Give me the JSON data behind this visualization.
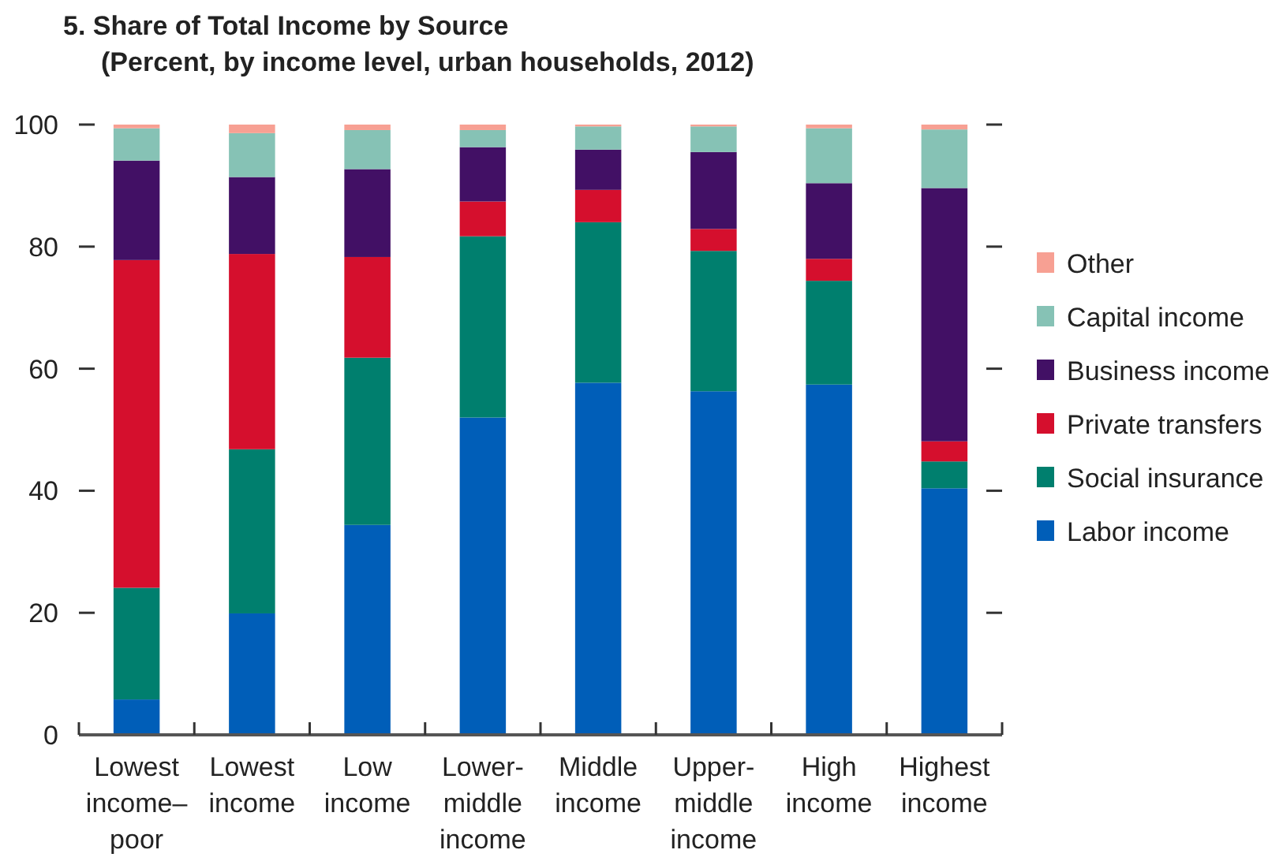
{
  "chart_data": {
    "type": "bar",
    "stacked": true,
    "title": "5. Share of Total Income by Source",
    "subtitle": "(Percent, by income level, urban households, 2012)",
    "categories": [
      "Lowest income–poor",
      "Lowest income",
      "Low income",
      "Lower-middle income",
      "Middle income",
      "Upper-middle income",
      "High income",
      "Highest income"
    ],
    "series": [
      {
        "name": "Labor income",
        "color": "#005eb8",
        "values": [
          5.8,
          19.9,
          34.4,
          52.0,
          57.7,
          56.3,
          57.4,
          40.4
        ]
      },
      {
        "name": "Social insurance",
        "color": "#007f6e",
        "values": [
          18.3,
          26.9,
          27.4,
          29.7,
          26.3,
          23.0,
          17.0,
          4.4
        ]
      },
      {
        "name": "Private transfers",
        "color": "#d50f2d",
        "values": [
          53.7,
          32.0,
          16.5,
          5.7,
          5.3,
          3.6,
          3.6,
          3.3
        ]
      },
      {
        "name": "Business income",
        "color": "#421065",
        "values": [
          16.3,
          12.6,
          14.4,
          8.9,
          6.6,
          12.6,
          12.4,
          41.5
        ]
      },
      {
        "name": "Capital income",
        "color": "#86c2b5",
        "values": [
          5.3,
          7.2,
          6.4,
          2.8,
          3.8,
          4.2,
          9.0,
          9.6
        ]
      },
      {
        "name": "Other",
        "color": "#f7a093",
        "values": [
          0.6,
          1.4,
          0.9,
          0.9,
          0.3,
          0.3,
          0.6,
          0.8
        ]
      }
    ],
    "ylim": [
      0,
      100
    ],
    "yticks": [
      0,
      20,
      40,
      60,
      80,
      100
    ],
    "grid": false,
    "legend": "right"
  }
}
